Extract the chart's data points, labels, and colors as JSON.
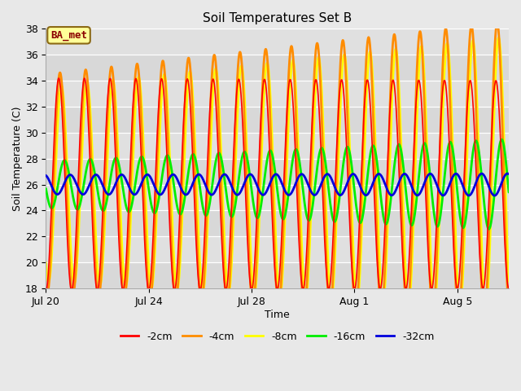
{
  "title": "Soil Temperatures Set B",
  "xlabel": "Time",
  "ylabel": "Soil Temperature (C)",
  "ylim": [
    18,
    38
  ],
  "yticks": [
    18,
    20,
    22,
    24,
    26,
    28,
    30,
    32,
    34,
    36,
    38
  ],
  "fig_bg": "#e8e8e8",
  "plot_bg": "#e0e0e0",
  "grid_bg_alt": "#d0d0d0",
  "annotation_text": "BA_met",
  "annotation_box_facecolor": "#ffff99",
  "annotation_box_edgecolor": "#8b6914",
  "annotation_text_color": "#8b0000",
  "colors": {
    "-2cm": "#ff0000",
    "-4cm": "#ff8c00",
    "-8cm": "#ffff00",
    "-16cm": "#00ee00",
    "-32cm": "#0000dd"
  },
  "lw": {
    "-2cm": 1.2,
    "-4cm": 2.0,
    "-8cm": 2.0,
    "-16cm": 2.0,
    "-32cm": 2.0
  },
  "n_days": 18,
  "spd": 96,
  "base_temp": 26.0,
  "depth_params": {
    "-2cm": {
      "amp_start": 8.2,
      "amp_end": 8.0,
      "phase": 0.0,
      "trend": 0.0
    },
    "-4cm": {
      "amp_start": 8.5,
      "amp_end": 11.5,
      "phase": 0.3,
      "trend": 0.0
    },
    "-8cm": {
      "amp_start": 7.5,
      "amp_end": 10.5,
      "phase": 0.65,
      "trend": 0.0
    },
    "-16cm": {
      "amp_start": 1.8,
      "amp_end": 3.5,
      "phase": 1.4,
      "trend": 0.0
    },
    "-32cm": {
      "amp_start": 0.75,
      "amp_end": 0.85,
      "phase": 2.8,
      "trend": 0.0
    }
  },
  "trends": {
    "-2cm": 0.0,
    "-4cm": 0.06,
    "-8cm": 0.05,
    "-16cm": 0.0,
    "-32cm": 0.0
  },
  "xtick_positions": [
    0,
    4,
    8,
    12,
    16
  ],
  "xtick_labels": [
    "Jul 20",
    "Jul 24",
    "Jul 28",
    "Aug 1",
    "Aug 5"
  ],
  "legend_order": [
    "-2cm",
    "-4cm",
    "-8cm",
    "-16cm",
    "-32cm"
  ],
  "zorder": {
    "-8cm": 2,
    "-4cm": 3,
    "-16cm": 4,
    "-2cm": 5,
    "-32cm": 6
  }
}
